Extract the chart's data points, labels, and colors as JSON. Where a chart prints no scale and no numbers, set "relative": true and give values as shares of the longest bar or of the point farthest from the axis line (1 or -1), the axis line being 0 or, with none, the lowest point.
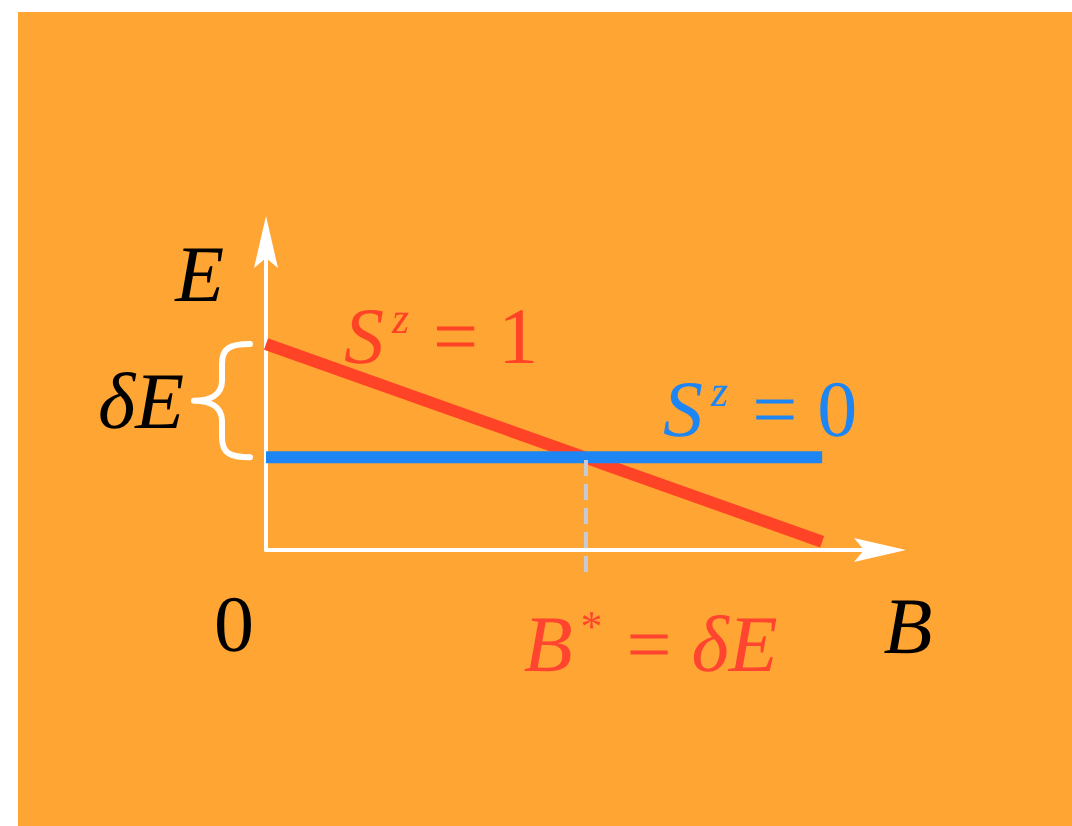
{
  "chart_data": {
    "type": "line",
    "relative": true,
    "xlabel": "B",
    "ylabel": "E",
    "marker": "none",
    "line_style": "solid",
    "categories": [
      null,
      null
    ],
    "series": [
      {
        "name": "S$^{z}$ = 1",
        "color": "#ff4326",
        "values": [
          1,
          0.04
        ]
      },
      {
        "name": "S$^{z}$ = 0",
        "color": "#1e86f2",
        "values": [
          0.45,
          0.45
        ]
      }
    ],
    "ref_lines": [
      {
        "axis": "x",
        "label": "B$^{*}$ = δE",
        "color": "#c9c9d6",
        "line_style": "dashed"
      }
    ],
    "annotations": [
      "0",
      "δE"
    ]
  }
}
